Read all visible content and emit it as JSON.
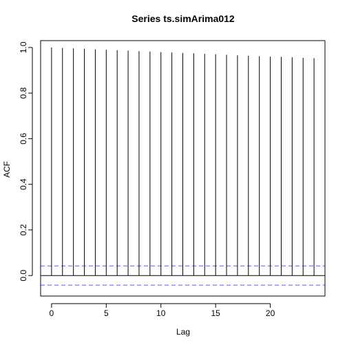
{
  "chart_data": {
    "type": "bar",
    "title": "Series  ts.simArima012",
    "xlabel": "Lag",
    "ylabel": "ACF",
    "x": [
      0,
      1,
      2,
      3,
      4,
      5,
      6,
      7,
      8,
      9,
      10,
      11,
      12,
      13,
      14,
      15,
      16,
      17,
      18,
      19,
      20,
      21,
      22,
      23,
      24
    ],
    "values": [
      1.0,
      0.998,
      0.996,
      0.994,
      0.992,
      0.99,
      0.988,
      0.986,
      0.984,
      0.982,
      0.98,
      0.978,
      0.976,
      0.974,
      0.972,
      0.97,
      0.968,
      0.966,
      0.964,
      0.962,
      0.96,
      0.959,
      0.957,
      0.955,
      0.953
    ],
    "confidence_bounds": [
      0.042,
      -0.042
    ],
    "xlim": [
      -1,
      25
    ],
    "ylim": [
      -0.09,
      1.03
    ],
    "xticks": [
      0,
      5,
      10,
      15,
      20
    ],
    "yticks": [
      0.0,
      0.2,
      0.4,
      0.6,
      0.8,
      1.0
    ],
    "xtick_labels": [
      "0",
      "5",
      "10",
      "15",
      "20"
    ],
    "ytick_labels": [
      "0.0",
      "0.2",
      "0.4",
      "0.6",
      "0.8",
      "1.0"
    ],
    "grid": false,
    "colors": {
      "bars": "#000000",
      "zero_line": "#000000",
      "confidence": "#5b5bd6",
      "frame": "#000000"
    }
  }
}
